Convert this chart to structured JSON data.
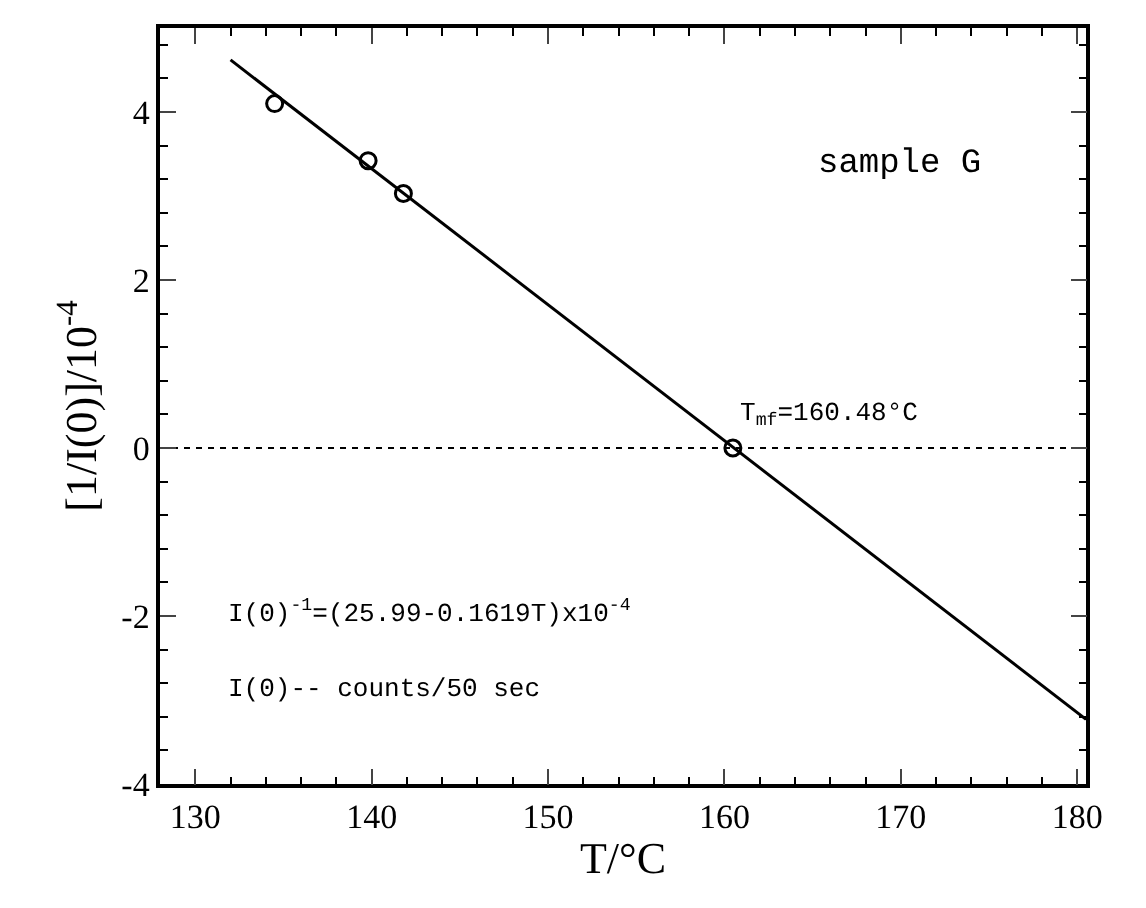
{
  "chart_data": {
    "type": "scatter",
    "xlabel": "T/°C",
    "ylabel": "[1/I(0)]/10$^{-4}$",
    "xlim": [
      128,
      180.5
    ],
    "ylim": [
      -4,
      5
    ],
    "xticks": [
      130,
      140,
      150,
      160,
      170,
      180
    ],
    "yticks": [
      -4,
      -2,
      0,
      2,
      4
    ],
    "grid": false,
    "legend": false,
    "series": [
      {
        "marker": "circle",
        "color": "#000000",
        "x": [
          134.5,
          139.8,
          141.8,
          160.48
        ],
        "values": [
          4.1,
          3.42,
          3.03,
          0
        ]
      },
      {
        "type": "line",
        "marker": "none",
        "color": "#000000",
        "x": [
          132,
          180.5
        ],
        "values": [
          4.62,
          -3.23
        ]
      }
    ],
    "ref_lines": [
      {
        "axis": "y",
        "value": 0,
        "line_style": "dotted",
        "color": "#000000"
      }
    ],
    "annotations": [
      "sample G",
      {
        "text": "T$_{mf}$=160.48°C",
        "x": 160.48,
        "y": 0
      },
      "I(0)$^{-1}$=(25.99-0.1619T)x10$^{-4}$",
      "I(0)-- counts/50 sec"
    ]
  }
}
